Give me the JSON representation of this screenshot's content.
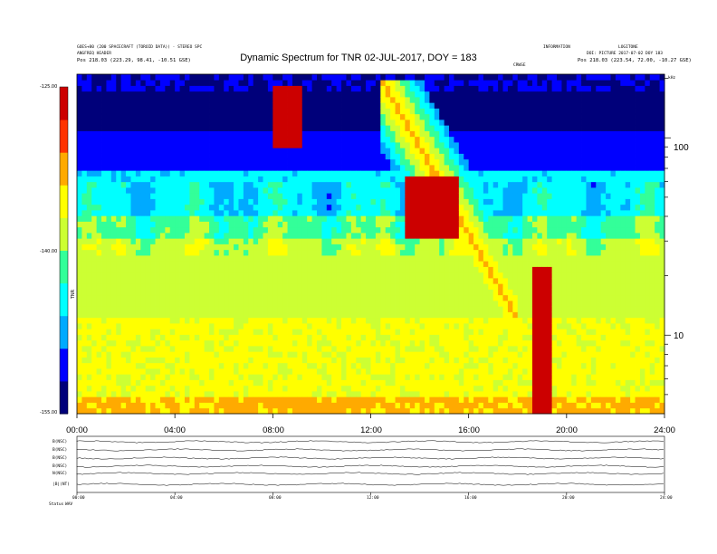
{
  "header": {
    "left_line1": "GOES+80 (200 SPACECRAFT (TOROID DATA)) · STEREO SPC",
    "left_line2": "ANGFREQ HEADER",
    "left_line3": "Pos    218.03 (223.29, 98.41, -10.51 GSE)",
    "right_line1": "INFORMATION",
    "right_line2": "DOI: PICTURE 2017-07-02 DOY 183",
    "right_line3": "Pos    218.03 (223.54, 72.00, -10.27 GSE)",
    "right_code": "LOGITONE",
    "marker": "CRWSE",
    "unit_tr": "kHz"
  },
  "colors": {
    "background": "#ffffff",
    "axis": "#000000"
  },
  "chart_data": {
    "type": "heatmap",
    "title": "Dynamic Spectrum for TNR 02-JUL-2017, DOY = 183",
    "x_ticks": [
      "00:00",
      "04:00",
      "08:00",
      "12:00",
      "16:00",
      "20:00",
      "24:00"
    ],
    "x_range_hours": [
      0,
      24
    ],
    "y_scale": "log",
    "y_ticks": [
      10,
      100
    ],
    "y_unit": "kHz",
    "y_range_khz": [
      4,
      210
    ],
    "colorbar": {
      "ticks": [
        "-125.00",
        "-140.00",
        "-155.00"
      ],
      "range": [
        -155,
        -125
      ],
      "label": "TNR",
      "colormap": [
        "#00007a",
        "#0000ff",
        "#00aaff",
        "#00ffff",
        "#33ff99",
        "#ccff33",
        "#ffff00",
        "#ffaa00",
        "#ff3300",
        "#cc0000"
      ]
    },
    "features": [
      {
        "name": "noise band",
        "t_start_h": 8.1,
        "t_end_h": 9.1,
        "f_low_khz": 90,
        "f_high_khz": 190,
        "level": -126
      },
      {
        "name": "type III burst",
        "t_start_h": 12.4,
        "t_end_h": 18.0,
        "f_low_khz": 12,
        "f_high_khz": 200,
        "level": -133
      },
      {
        "name": "burst core",
        "t_start_h": 13.5,
        "t_end_h": 15.5,
        "f_low_khz": 30,
        "f_high_khz": 65,
        "level": -128
      },
      {
        "name": "low freq burst",
        "t_start_h": 18.7,
        "t_end_h": 19.3,
        "f_low_khz": 4,
        "f_high_khz": 22,
        "level": -125
      }
    ],
    "bottom_panel": {
      "rows": [
        "B(NSC)",
        "B(NSC)",
        "B(NSC)",
        "B(NSC)",
        "N(NSC)",
        "|B|(NT)"
      ],
      "ticks": [
        "00:00",
        "04:00",
        "08:00",
        "12:00",
        "16:00",
        "20:00",
        "24:00"
      ],
      "footer_label": "Status",
      "footer_value": "WAV"
    }
  }
}
